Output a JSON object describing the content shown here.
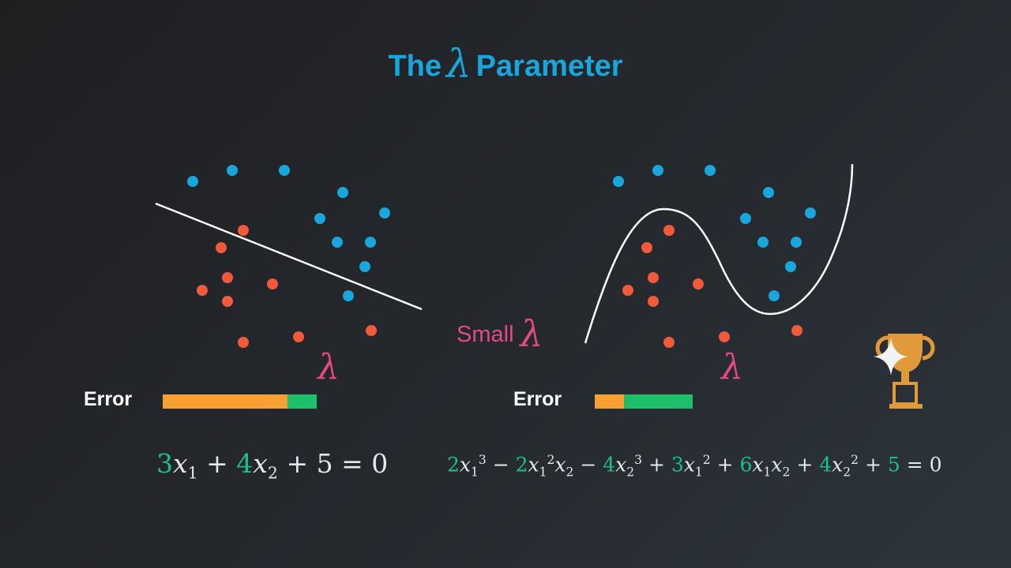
{
  "title": {
    "prefix": "The",
    "symbol": "λ",
    "suffix": "Parameter"
  },
  "panels": [
    {
      "lambda_symbol": "λ",
      "error_label": "Error",
      "error_bar": {
        "orange_fraction": 0.81,
        "green_fraction": 0.19
      },
      "equation": {
        "terms": [
          {
            "coef": "3",
            "var": "x",
            "sub": "1",
            "op": "+"
          },
          {
            "coef": "4",
            "var": "x",
            "sub": "2",
            "op": "+"
          },
          {
            "const": "5",
            "op": "= 0"
          }
        ]
      }
    },
    {
      "lambda_symbol": "λ",
      "small_lambda_label": "Small",
      "small_lambda_symbol": "λ",
      "error_label": "Error",
      "error_bar": {
        "orange_fraction": 0.3,
        "green_fraction": 0.7
      },
      "equation_text": {
        "c1": "2",
        "c2": "2",
        "c3": "4",
        "c4": "3",
        "c5": "6",
        "c6": "4",
        "c7": "5",
        "op_minus": "−",
        "op_plus": "+",
        "equals": "= 0",
        "var": "x",
        "s1": "1",
        "s2": "2",
        "p3": "3",
        "p2": "2"
      }
    }
  ],
  "colors": {
    "title": "#19a6dd",
    "blue_point": "#19a6dd",
    "red_point": "#f15a3b",
    "lambda": "#e24a86",
    "orange_bar": "#f7a134",
    "green_bar": "#1fbe6a",
    "coefficient": "#1ac08a",
    "trophy": "#e09a3a"
  },
  "icons": {
    "trophy": "trophy-icon",
    "sparkle": "sparkle-icon"
  }
}
